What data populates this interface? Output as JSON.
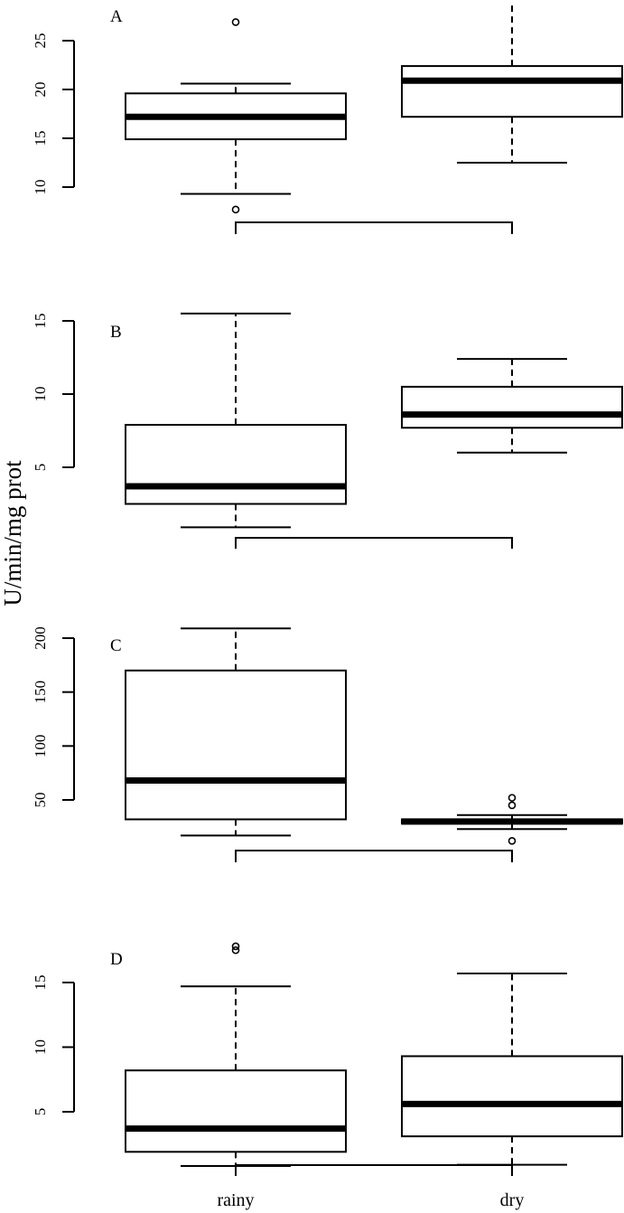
{
  "ylabel": "U/min/mg prot",
  "categories": [
    "rainy",
    "dry"
  ],
  "chart_data": [
    {
      "type": "boxplot",
      "panel": "A",
      "categories": [
        "rainy",
        "dry"
      ],
      "yticks": [
        10,
        15,
        20,
        25
      ],
      "boxes": [
        {
          "category": "rainy",
          "whisker_low": 9.3,
          "q1": 14.9,
          "median": 17.2,
          "q3": 19.6,
          "whisker_high": 20.6,
          "outliers": [
            26.9,
            7.7
          ]
        },
        {
          "category": "dry",
          "whisker_low": 12.5,
          "q1": 17.2,
          "median": 20.9,
          "q3": 22.4,
          "whisker_high": 29.0,
          "outliers": []
        }
      ]
    },
    {
      "type": "boxplot",
      "panel": "B",
      "categories": [
        "rainy",
        "dry"
      ],
      "yticks": [
        5,
        10,
        15
      ],
      "boxes": [
        {
          "category": "rainy",
          "whisker_low": 0.9,
          "q1": 2.5,
          "median": 3.7,
          "q3": 7.9,
          "whisker_high": 15.5,
          "outliers": []
        },
        {
          "category": "dry",
          "whisker_low": 6.0,
          "q1": 7.7,
          "median": 8.6,
          "q3": 10.5,
          "whisker_high": 12.4,
          "outliers": []
        }
      ]
    },
    {
      "type": "boxplot",
      "panel": "C",
      "categories": [
        "rainy",
        "dry"
      ],
      "yticks": [
        50,
        100,
        150,
        200
      ],
      "boxes": [
        {
          "category": "rainy",
          "whisker_low": 17,
          "q1": 32,
          "median": 68,
          "q3": 170,
          "whisker_high": 209,
          "outliers": []
        },
        {
          "category": "dry",
          "whisker_low": 23,
          "q1": 28,
          "median": 30,
          "q3": 32,
          "whisker_high": 36,
          "outliers": [
            52,
            45,
            12
          ]
        }
      ]
    },
    {
      "type": "boxplot",
      "panel": "D",
      "categories": [
        "rainy",
        "dry"
      ],
      "yticks": [
        5,
        10,
        15
      ],
      "boxes": [
        {
          "category": "rainy",
          "whisker_low": 0.8,
          "q1": 1.9,
          "median": 3.7,
          "q3": 8.2,
          "whisker_high": 14.7,
          "outliers": [
            17.8,
            17.5
          ]
        },
        {
          "category": "dry",
          "whisker_low": 0.9,
          "q1": 3.1,
          "median": 5.6,
          "q3": 9.3,
          "whisker_high": 15.7,
          "outliers": []
        }
      ]
    }
  ]
}
